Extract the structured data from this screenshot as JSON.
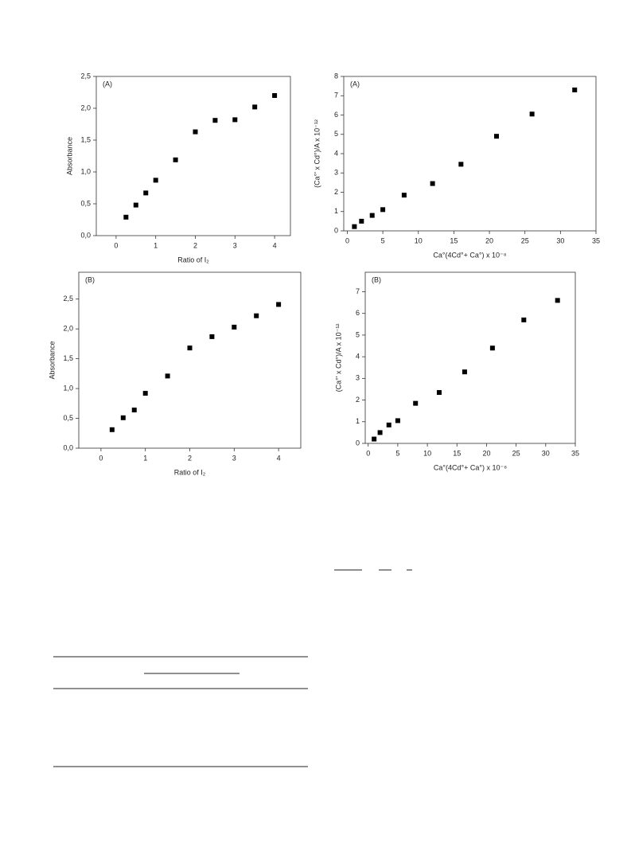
{
  "chart_data": [
    {
      "type": "scatter",
      "annotation": "(A)",
      "xlabel": "Ratio of I₂",
      "ylabel": "Absorbance",
      "xlim": [
        -0.5,
        4.4
      ],
      "xticks": [
        0,
        1,
        2,
        3,
        4
      ],
      "ylim": [
        0,
        2.5
      ],
      "yticks": [
        {
          "value": 0,
          "label": "0,0"
        },
        {
          "value": 0.5,
          "label": "0,5"
        },
        {
          "value": 1,
          "label": "1,0"
        },
        {
          "value": 1.5,
          "label": "1,5"
        },
        {
          "value": 2,
          "label": "2,0"
        },
        {
          "value": 2.5,
          "label": "2,5"
        }
      ],
      "color": "#000000",
      "x": [
        0.25,
        0.5,
        0.75,
        1,
        1.5,
        2,
        2.5,
        3,
        3.5,
        4
      ],
      "values": [
        0.29,
        0.48,
        0.67,
        0.87,
        1.19,
        1.63,
        1.81,
        1.82,
        2.02,
        2.2
      ]
    },
    {
      "type": "scatter",
      "annotation": "(A)",
      "xlabel": "Ca°(4Cd°+ Ca°) x 10⁻⁸",
      "ylabel": "(Ca°' x Cd°)/A x 10⁻¹²",
      "xlim": [
        -0.5,
        35
      ],
      "xticks": [
        0,
        5,
        10,
        15,
        20,
        25,
        30,
        35
      ],
      "ylim": [
        0,
        8
      ],
      "yticks": [
        0,
        1,
        2,
        3,
        4,
        5,
        6,
        7,
        8
      ],
      "color": "#000000",
      "x": [
        1,
        2,
        3.5,
        5,
        8,
        12,
        16,
        21,
        26,
        32
      ],
      "values": [
        0.22,
        0.5,
        0.8,
        1.1,
        1.85,
        2.45,
        3.45,
        4.9,
        6.05,
        7.3
      ]
    },
    {
      "type": "scatter",
      "annotation": "(B)",
      "xlabel": "Ratio of I₂",
      "ylabel": "Absorbance",
      "xlim": [
        -0.5,
        4.5
      ],
      "xticks": [
        0,
        1,
        2,
        3,
        4
      ],
      "ylim": [
        0,
        2.95
      ],
      "yticks": [
        {
          "value": 0,
          "label": "0,0"
        },
        {
          "value": 0.5,
          "label": "0,5"
        },
        {
          "value": 1,
          "label": "1,0"
        },
        {
          "value": 1.5,
          "label": "1,5"
        },
        {
          "value": 2,
          "label": "2,0"
        },
        {
          "value": 2.5,
          "label": "2,5"
        }
      ],
      "color": "#000000",
      "x": [
        0.25,
        0.5,
        0.75,
        1,
        1.5,
        2,
        2.5,
        3,
        3.5,
        4
      ],
      "values": [
        0.31,
        0.51,
        0.64,
        0.92,
        1.21,
        1.68,
        1.87,
        2.03,
        2.22,
        2.41
      ]
    },
    {
      "type": "scatter",
      "annotation": "(B)",
      "xlabel": "Ca°(4Cd°+ Ca°) x 10⁻⁸",
      "ylabel": "(Ca°' x Cd°)/A x 10⁻¹²",
      "xlim": [
        -0.5,
        35
      ],
      "xticks": [
        0,
        5,
        10,
        15,
        20,
        25,
        30,
        35
      ],
      "ylim": [
        0,
        7.9
      ],
      "yticks": [
        0,
        1,
        2,
        3,
        4,
        5,
        6,
        7
      ],
      "color": "#000000",
      "x": [
        1,
        2,
        3.5,
        5,
        8,
        12,
        16.3,
        21,
        26.3,
        32
      ],
      "values": [
        0.2,
        0.5,
        0.85,
        1.05,
        1.85,
        2.35,
        3.3,
        4.4,
        5.7,
        6.6
      ]
    }
  ]
}
